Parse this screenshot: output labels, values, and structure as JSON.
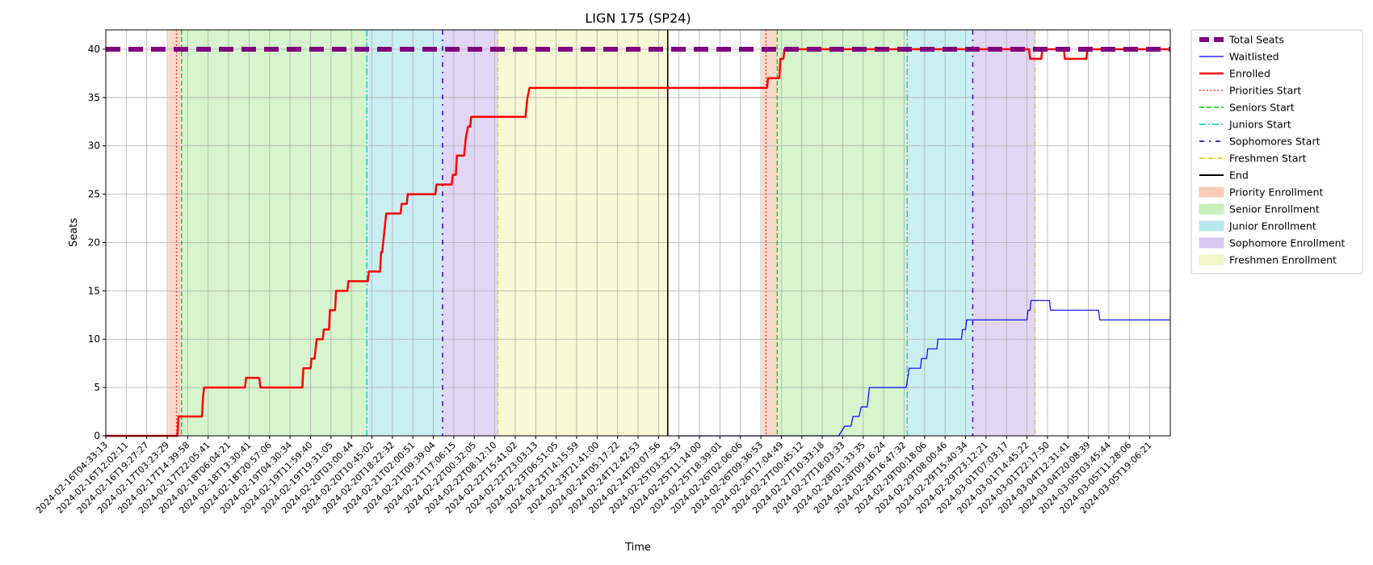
{
  "chart_data": {
    "type": "line",
    "title": "LIGN 175 (SP24)",
    "xlabel": "Time",
    "ylabel": "Seats",
    "ylim": [
      0,
      42
    ],
    "yticks": [
      0,
      5,
      10,
      15,
      20,
      25,
      30,
      35,
      40
    ],
    "grid": true,
    "legend_position": "outside-right",
    "x_tick_labels": [
      "2024-02-16T04:33:13",
      "2024-02-16T12:02:11",
      "2024-02-16T19:27:27",
      "2024-02-17T03:23:29",
      "2024-02-17T14:39:58",
      "2024-02-17T22:05:41",
      "2024-02-18T06:04:21",
      "2024-02-18T13:30:41",
      "2024-02-18T20:57:06",
      "2024-02-19T04:30:34",
      "2024-02-19T11:59:40",
      "2024-02-19T19:31:05",
      "2024-02-20T03:00:44",
      "2024-02-20T10:45:02",
      "2024-02-20T18:22:32",
      "2024-02-21T02:00:51",
      "2024-02-21T09:39:04",
      "2024-02-21T17:06:15",
      "2024-02-22T00:32:05",
      "2024-02-22T08:12:10",
      "2024-02-22T15:41:02",
      "2024-02-22T23:03:13",
      "2024-02-23T06:51:05",
      "2024-02-23T14:15:59",
      "2024-02-23T21:41:00",
      "2024-02-24T05:17:22",
      "2024-02-24T12:42:53",
      "2024-02-24T20:07:56",
      "2024-02-25T03:32:53",
      "2024-02-25T11:14:00",
      "2024-02-25T18:39:01",
      "2024-02-26T02:06:06",
      "2024-02-26T09:36:53",
      "2024-02-26T17:04:49",
      "2024-02-27T00:45:12",
      "2024-02-27T10:33:18",
      "2024-02-27T18:03:33",
      "2024-02-28T01:33:35",
      "2024-02-28T09:16:24",
      "2024-02-28T16:47:32",
      "2024-02-29T00:18:06",
      "2024-02-29T08:00:46",
      "2024-02-29T15:40:34",
      "2024-02-29T23:12:21",
      "2024-03-01T07:03:17",
      "2024-03-01T14:45:22",
      "2024-03-01T22:17:50",
      "2024-03-04T12:31:41",
      "2024-03-04T20:08:39",
      "2024-03-05T03:45:44",
      "2024-03-05T11:28:06",
      "2024-03-05T19:06:21"
    ],
    "x_index_max": 52,
    "total_seats": 40,
    "series": [
      {
        "name": "Total Seats",
        "color": "#800080",
        "style": "dashed-thick",
        "points": [
          [
            0,
            40
          ],
          [
            52,
            40
          ]
        ]
      },
      {
        "name": "Waitlisted",
        "color": "#0000ff",
        "style": "solid-thin",
        "points": [
          [
            27.9,
            0
          ],
          [
            35.8,
            0
          ],
          [
            36.1,
            1
          ],
          [
            36.4,
            1
          ],
          [
            36.5,
            2
          ],
          [
            36.8,
            2
          ],
          [
            36.9,
            3
          ],
          [
            37.2,
            3
          ],
          [
            37.3,
            5
          ],
          [
            38.7,
            5
          ],
          [
            39.1,
            5
          ],
          [
            39.25,
            7
          ],
          [
            39.8,
            7
          ],
          [
            39.85,
            8
          ],
          [
            40.1,
            8
          ],
          [
            40.15,
            9
          ],
          [
            40.6,
            9
          ],
          [
            40.65,
            10
          ],
          [
            41.8,
            10
          ],
          [
            41.85,
            11
          ],
          [
            42.0,
            11
          ],
          [
            42.05,
            12
          ],
          [
            45.0,
            12
          ],
          [
            45.05,
            13
          ],
          [
            45.15,
            13
          ],
          [
            45.2,
            14
          ],
          [
            46.1,
            14
          ],
          [
            46.15,
            13
          ],
          [
            48.5,
            13
          ],
          [
            48.55,
            12
          ],
          [
            52,
            12
          ]
        ]
      },
      {
        "name": "Enrolled",
        "color": "#ff0000",
        "style": "solid-thick",
        "points": [
          [
            0,
            0
          ],
          [
            3.5,
            0
          ],
          [
            3.55,
            2
          ],
          [
            4.7,
            2
          ],
          [
            4.75,
            4
          ],
          [
            4.8,
            5
          ],
          [
            6.8,
            5
          ],
          [
            6.85,
            6
          ],
          [
            7.5,
            6
          ],
          [
            7.55,
            5
          ],
          [
            9.6,
            5
          ],
          [
            9.65,
            7
          ],
          [
            10.0,
            7
          ],
          [
            10.05,
            8
          ],
          [
            10.2,
            8
          ],
          [
            10.25,
            9
          ],
          [
            10.3,
            10
          ],
          [
            10.6,
            10
          ],
          [
            10.65,
            11
          ],
          [
            10.9,
            11
          ],
          [
            10.95,
            13
          ],
          [
            11.2,
            13
          ],
          [
            11.25,
            15
          ],
          [
            11.8,
            15
          ],
          [
            11.85,
            16
          ],
          [
            12.8,
            16
          ],
          [
            12.85,
            17
          ],
          [
            13.4,
            17
          ],
          [
            13.45,
            19
          ],
          [
            13.5,
            19
          ],
          [
            13.6,
            21
          ],
          [
            13.7,
            23
          ],
          [
            14.4,
            23
          ],
          [
            14.45,
            24
          ],
          [
            14.7,
            24
          ],
          [
            14.75,
            25
          ],
          [
            16.1,
            25
          ],
          [
            16.15,
            26
          ],
          [
            16.9,
            26
          ],
          [
            16.95,
            27
          ],
          [
            17.1,
            27
          ],
          [
            17.15,
            29
          ],
          [
            17.5,
            29
          ],
          [
            17.55,
            30
          ],
          [
            17.6,
            31
          ],
          [
            17.7,
            32
          ],
          [
            17.8,
            32
          ],
          [
            17.85,
            33
          ],
          [
            20.5,
            33
          ],
          [
            20.6,
            35
          ],
          [
            20.7,
            36
          ],
          [
            27.9,
            36
          ],
          [
            32.3,
            36
          ],
          [
            32.35,
            37
          ],
          [
            32.9,
            37
          ],
          [
            32.95,
            39
          ],
          [
            33.1,
            39
          ],
          [
            33.15,
            40
          ],
          [
            45.1,
            40
          ],
          [
            45.15,
            39
          ],
          [
            45.7,
            39
          ],
          [
            45.75,
            40
          ],
          [
            46.8,
            40
          ],
          [
            46.85,
            39
          ],
          [
            47.9,
            39
          ],
          [
            47.95,
            40
          ],
          [
            52,
            40
          ]
        ]
      }
    ],
    "phase_markers": [
      {
        "name": "Priorities Start",
        "color": "#ff0000",
        "style": "dotted",
        "x": [
          3.45,
          32.25
        ]
      },
      {
        "name": "Seniors Start",
        "color": "#00cc00",
        "style": "dashed",
        "x": [
          3.7,
          32.8
        ]
      },
      {
        "name": "Juniors Start",
        "color": "#00cccc",
        "style": "dashdot",
        "x": [
          12.75,
          39.15
        ]
      },
      {
        "name": "Sophomores Start",
        "color": "#4b00cc",
        "style": "loose-dashdot",
        "x": [
          16.45,
          42.35
        ]
      },
      {
        "name": "Freshmen Start",
        "color": "#cccc00",
        "style": "dashdot-thin",
        "x": [
          19.15,
          45.4
        ]
      },
      {
        "name": "End",
        "color": "#000000",
        "style": "solid",
        "x": [
          27.45
        ]
      }
    ],
    "phase_spans": [
      {
        "name": "Priority Enrollment",
        "color": "#f8ccb8",
        "spans": [
          [
            3.05,
            3.7
          ],
          [
            32.05,
            32.8
          ]
        ]
      },
      {
        "name": "Senior Enrollment",
        "color": "#c8f0bc",
        "spans": [
          [
            3.7,
            12.75
          ],
          [
            32.8,
            39.15
          ]
        ]
      },
      {
        "name": "Junior Enrollment",
        "color": "#b8eaef",
        "spans": [
          [
            12.75,
            16.45
          ],
          [
            39.15,
            42.35
          ]
        ]
      },
      {
        "name": "Sophomore Enrollment",
        "color": "#d8c8f2",
        "spans": [
          [
            16.45,
            19.15
          ],
          [
            42.35,
            45.4
          ]
        ]
      },
      {
        "name": "Freshmen Enrollment",
        "color": "#f5f5c8",
        "spans": [
          [
            19.15,
            27.45
          ],
          []
        ]
      }
    ],
    "legend": [
      "Total Seats",
      "Waitlisted",
      "Enrolled",
      "Priorities Start",
      "Seniors Start",
      "Juniors Start",
      "Sophomores Start",
      "Freshmen Start",
      "End",
      "Priority Enrollment",
      "Senior Enrollment",
      "Junior Enrollment",
      "Sophomore Enrollment",
      "Freshmen Enrollment"
    ]
  }
}
